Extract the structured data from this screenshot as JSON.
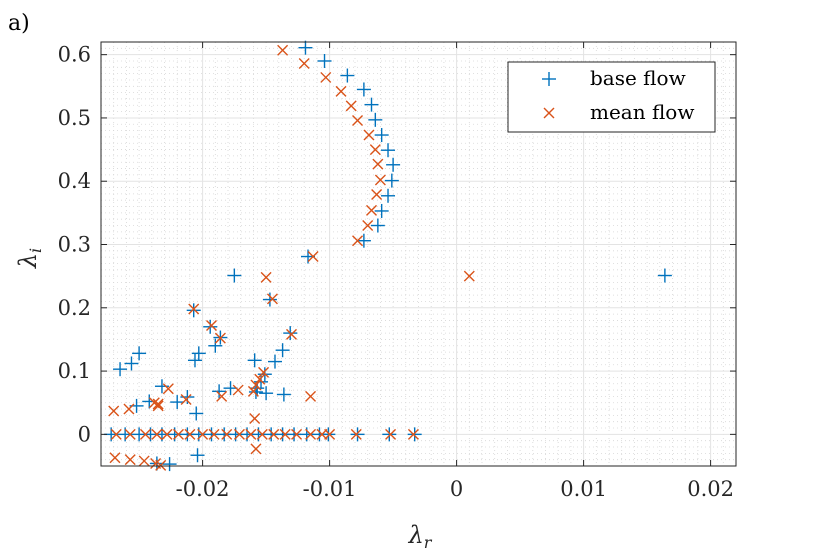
{
  "panel_label": "a)",
  "chart_data": {
    "type": "scatter",
    "xlabel": "λr",
    "xlabel_base": "λ",
    "xlabel_sub": "r",
    "ylabel": "λi",
    "ylabel_base": "λ",
    "ylabel_sub": "i",
    "xlim": [
      -0.028,
      0.022
    ],
    "ylim": [
      -0.05,
      0.62
    ],
    "xticks": [
      -0.02,
      -0.01,
      0,
      0.01,
      0.02
    ],
    "xtick_labels": [
      "-0.02",
      "-0.01",
      "0",
      "0.01",
      "0.02"
    ],
    "yticks": [
      0,
      0.1,
      0.2,
      0.3,
      0.4,
      0.5,
      0.6
    ],
    "ytick_labels": [
      "0",
      "0.1",
      "0.2",
      "0.3",
      "0.4",
      "0.5",
      "0.6"
    ],
    "grid": true,
    "minor_grid": true,
    "legend_position": "top-right",
    "series": [
      {
        "name": "base flow",
        "marker": "+",
        "color": "#0072BD",
        "points": [
          [
            -0.0119,
            0.611
          ],
          [
            -0.0104,
            0.59
          ],
          [
            -0.0086,
            0.567
          ],
          [
            -0.0073,
            0.545
          ],
          [
            -0.0067,
            0.521
          ],
          [
            -0.0064,
            0.497
          ],
          [
            -0.0059,
            0.473
          ],
          [
            -0.0054,
            0.449
          ],
          [
            -0.005,
            0.426
          ],
          [
            -0.0051,
            0.401
          ],
          [
            -0.0054,
            0.377
          ],
          [
            -0.0059,
            0.353
          ],
          [
            -0.0062,
            0.33
          ],
          [
            -0.0073,
            0.306
          ],
          [
            -0.0117,
            0.281
          ],
          [
            0.0164,
            0.251
          ],
          [
            -0.0175,
            0.251
          ],
          [
            -0.0147,
            0.213
          ],
          [
            -0.0207,
            0.196
          ],
          [
            -0.0194,
            0.17
          ],
          [
            -0.0186,
            0.153
          ],
          [
            -0.019,
            0.14
          ],
          [
            -0.0131,
            0.16
          ],
          [
            -0.0137,
            0.133
          ],
          [
            -0.0143,
            0.115
          ],
          [
            -0.0159,
            0.117
          ],
          [
            -0.0203,
            0.128
          ],
          [
            -0.0206,
            0.117
          ],
          [
            -0.025,
            0.128
          ],
          [
            -0.0256,
            0.112
          ],
          [
            -0.0265,
            0.103
          ],
          [
            -0.0151,
            0.095
          ],
          [
            -0.0154,
            0.083
          ],
          [
            -0.0157,
            0.073
          ],
          [
            -0.0158,
            0.067
          ],
          [
            -0.015,
            0.065
          ],
          [
            -0.0136,
            0.063
          ],
          [
            -0.0178,
            0.073
          ],
          [
            -0.0187,
            0.068
          ],
          [
            -0.0232,
            0.076
          ],
          [
            -0.0212,
            0.059
          ],
          [
            -0.022,
            0.051
          ],
          [
            -0.0242,
            0.052
          ],
          [
            -0.0252,
            0.045
          ],
          [
            -0.0205,
            0.033
          ],
          [
            -0.0204,
            -0.033
          ],
          [
            -0.0226,
            -0.047
          ],
          [
            -0.0236,
            -0.046
          ],
          [
            -0.0272,
            0
          ],
          [
            -0.0261,
            0
          ],
          [
            -0.025,
            0
          ],
          [
            -0.0241,
            0
          ],
          [
            -0.0232,
            0
          ],
          [
            -0.0222,
            0
          ],
          [
            -0.0212,
            0
          ],
          [
            -0.0203,
            0
          ],
          [
            -0.0193,
            0
          ],
          [
            -0.0183,
            0
          ],
          [
            -0.0174,
            0
          ],
          [
            -0.0165,
            0
          ],
          [
            -0.0156,
            0
          ],
          [
            -0.0146,
            0
          ],
          [
            -0.0137,
            0
          ],
          [
            -0.0128,
            0
          ],
          [
            -0.0118,
            0
          ],
          [
            -0.0108,
            0
          ],
          [
            -0.0101,
            0
          ],
          [
            -0.0078,
            0
          ],
          [
            -0.0053,
            0
          ],
          [
            -0.0033,
            0
          ]
        ]
      },
      {
        "name": "mean flow",
        "marker": "x",
        "color": "#D95319",
        "points": [
          [
            -0.0137,
            0.607
          ],
          [
            -0.012,
            0.586
          ],
          [
            -0.0103,
            0.564
          ],
          [
            -0.0091,
            0.542
          ],
          [
            -0.0083,
            0.519
          ],
          [
            -0.0078,
            0.496
          ],
          [
            -0.0069,
            0.473
          ],
          [
            -0.0064,
            0.45
          ],
          [
            -0.0062,
            0.427
          ],
          [
            -0.006,
            0.402
          ],
          [
            -0.0063,
            0.379
          ],
          [
            -0.0067,
            0.354
          ],
          [
            -0.007,
            0.33
          ],
          [
            -0.0078,
            0.306
          ],
          [
            -0.0113,
            0.281
          ],
          [
            0.001,
            0.25
          ],
          [
            -0.015,
            0.248
          ],
          [
            -0.0145,
            0.214
          ],
          [
            -0.0207,
            0.198
          ],
          [
            -0.0193,
            0.172
          ],
          [
            -0.0186,
            0.152
          ],
          [
            -0.013,
            0.158
          ],
          [
            -0.0152,
            0.098
          ],
          [
            -0.0155,
            0.087
          ],
          [
            -0.0158,
            0.078
          ],
          [
            -0.016,
            0.068
          ],
          [
            -0.0172,
            0.07
          ],
          [
            -0.0185,
            0.06
          ],
          [
            -0.0227,
            0.072
          ],
          [
            -0.0213,
            0.055
          ],
          [
            -0.0235,
            0.048
          ],
          [
            -0.0238,
            0.05
          ],
          [
            -0.0115,
            0.06
          ],
          [
            -0.0159,
            0.025
          ],
          [
            -0.0158,
            -0.023
          ],
          [
            -0.0235,
            0.045
          ],
          [
            -0.0258,
            0.04
          ],
          [
            -0.027,
            0.037
          ],
          [
            -0.0269,
            -0.037
          ],
          [
            -0.0257,
            -0.04
          ],
          [
            -0.0246,
            -0.042
          ],
          [
            -0.0237,
            -0.046
          ],
          [
            -0.0233,
            -0.049
          ],
          [
            -0.0268,
            0
          ],
          [
            -0.0257,
            0
          ],
          [
            -0.0245,
            0
          ],
          [
            -0.0236,
            0
          ],
          [
            -0.0228,
            0
          ],
          [
            -0.0219,
            0
          ],
          [
            -0.021,
            0
          ],
          [
            -0.02,
            0
          ],
          [
            -0.0191,
            0
          ],
          [
            -0.0181,
            0
          ],
          [
            -0.0171,
            0
          ],
          [
            -0.0162,
            0
          ],
          [
            -0.0153,
            0
          ],
          [
            -0.0144,
            0
          ],
          [
            -0.0135,
            0
          ],
          [
            -0.0126,
            0
          ],
          [
            -0.0115,
            0
          ],
          [
            -0.0106,
            0
          ],
          [
            -0.01,
            0
          ],
          [
            -0.0079,
            0
          ],
          [
            -0.0052,
            0
          ],
          [
            -0.0034,
            0
          ]
        ]
      }
    ]
  }
}
